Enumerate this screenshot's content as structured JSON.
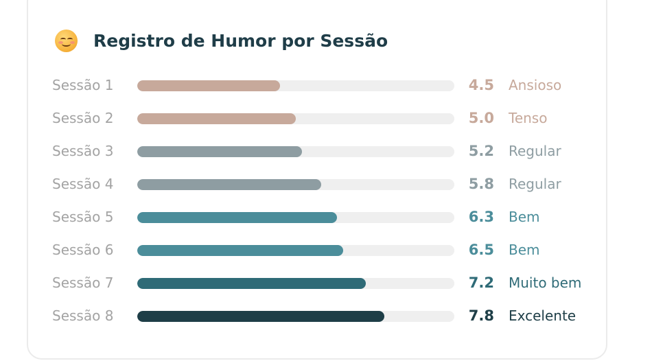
{
  "card": {
    "title": "Registro de Humor por Sessão",
    "icon": "smiling-face-icon"
  },
  "chart_data": {
    "type": "bar",
    "orientation": "horizontal",
    "title": "Registro de Humor por Sessão",
    "xlim": [
      0,
      10
    ],
    "categories": [
      "Sessão 1",
      "Sessão 2",
      "Sessão 3",
      "Sessão 4",
      "Sessão 5",
      "Sessão 6",
      "Sessão 7",
      "Sessão 8"
    ],
    "values": [
      4.5,
      5.0,
      5.2,
      5.8,
      6.3,
      6.5,
      7.2,
      7.8
    ],
    "value_labels": [
      "4.5",
      "5.0",
      "5.2",
      "5.8",
      "6.3",
      "6.5",
      "7.2",
      "7.8"
    ],
    "moods": [
      "Ansioso",
      "Tenso",
      "Regular",
      "Regular",
      "Bem",
      "Bem",
      "Muito bem",
      "Excelente"
    ],
    "colors": [
      "#c7a99b",
      "#c7a99b",
      "#8e9da2",
      "#8e9da2",
      "#4b8d9a",
      "#4b8d9a",
      "#2f6b77",
      "#1e3e47"
    ],
    "track_color": "#efefef"
  }
}
